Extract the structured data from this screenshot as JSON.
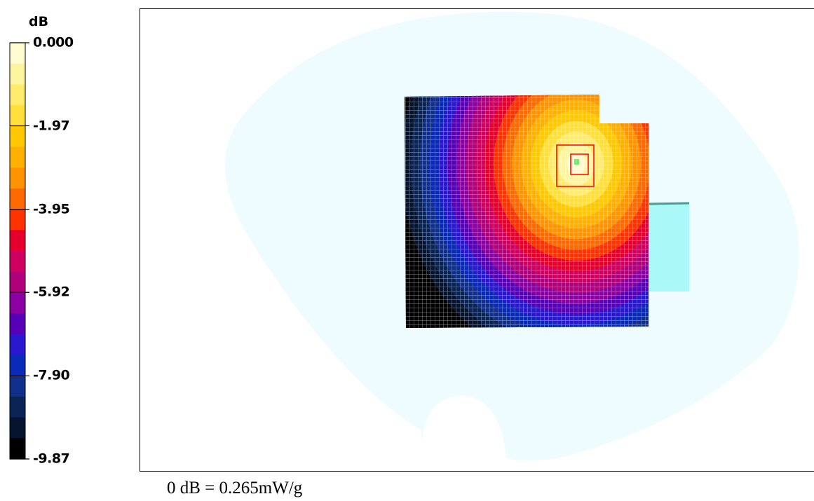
{
  "chart_data": {
    "type": "heatmap",
    "colorbar": {
      "unit": "dB",
      "range": [
        -9.87,
        0.0
      ],
      "tick_labels": [
        "0.000",
        "-1.97",
        "-3.95",
        "-5.92",
        "-7.90",
        "-9.87"
      ],
      "bands_top_to_bottom": [
        "#fffcd2",
        "#fff5a0",
        "#ffec6e",
        "#ffe03a",
        "#ffc800",
        "#ffb000",
        "#ff9400",
        "#ff6a00",
        "#ff3200",
        "#e8002c",
        "#d00060",
        "#b0007c",
        "#8a00a0",
        "#5800b8",
        "#2a18d0",
        "#0a2ab8",
        "#10308c",
        "#0a2456",
        "#061430",
        "#000000"
      ]
    },
    "colors": {
      "phantom": "#eefcff",
      "scan_area": "#000000",
      "grid_lines": "#ffffff",
      "device_block": "#aaf8f8",
      "zoom_boxes": "#ff0000",
      "peak_marker": "#6af26a"
    },
    "footnote": "0 dB = 0.265mW/g"
  }
}
